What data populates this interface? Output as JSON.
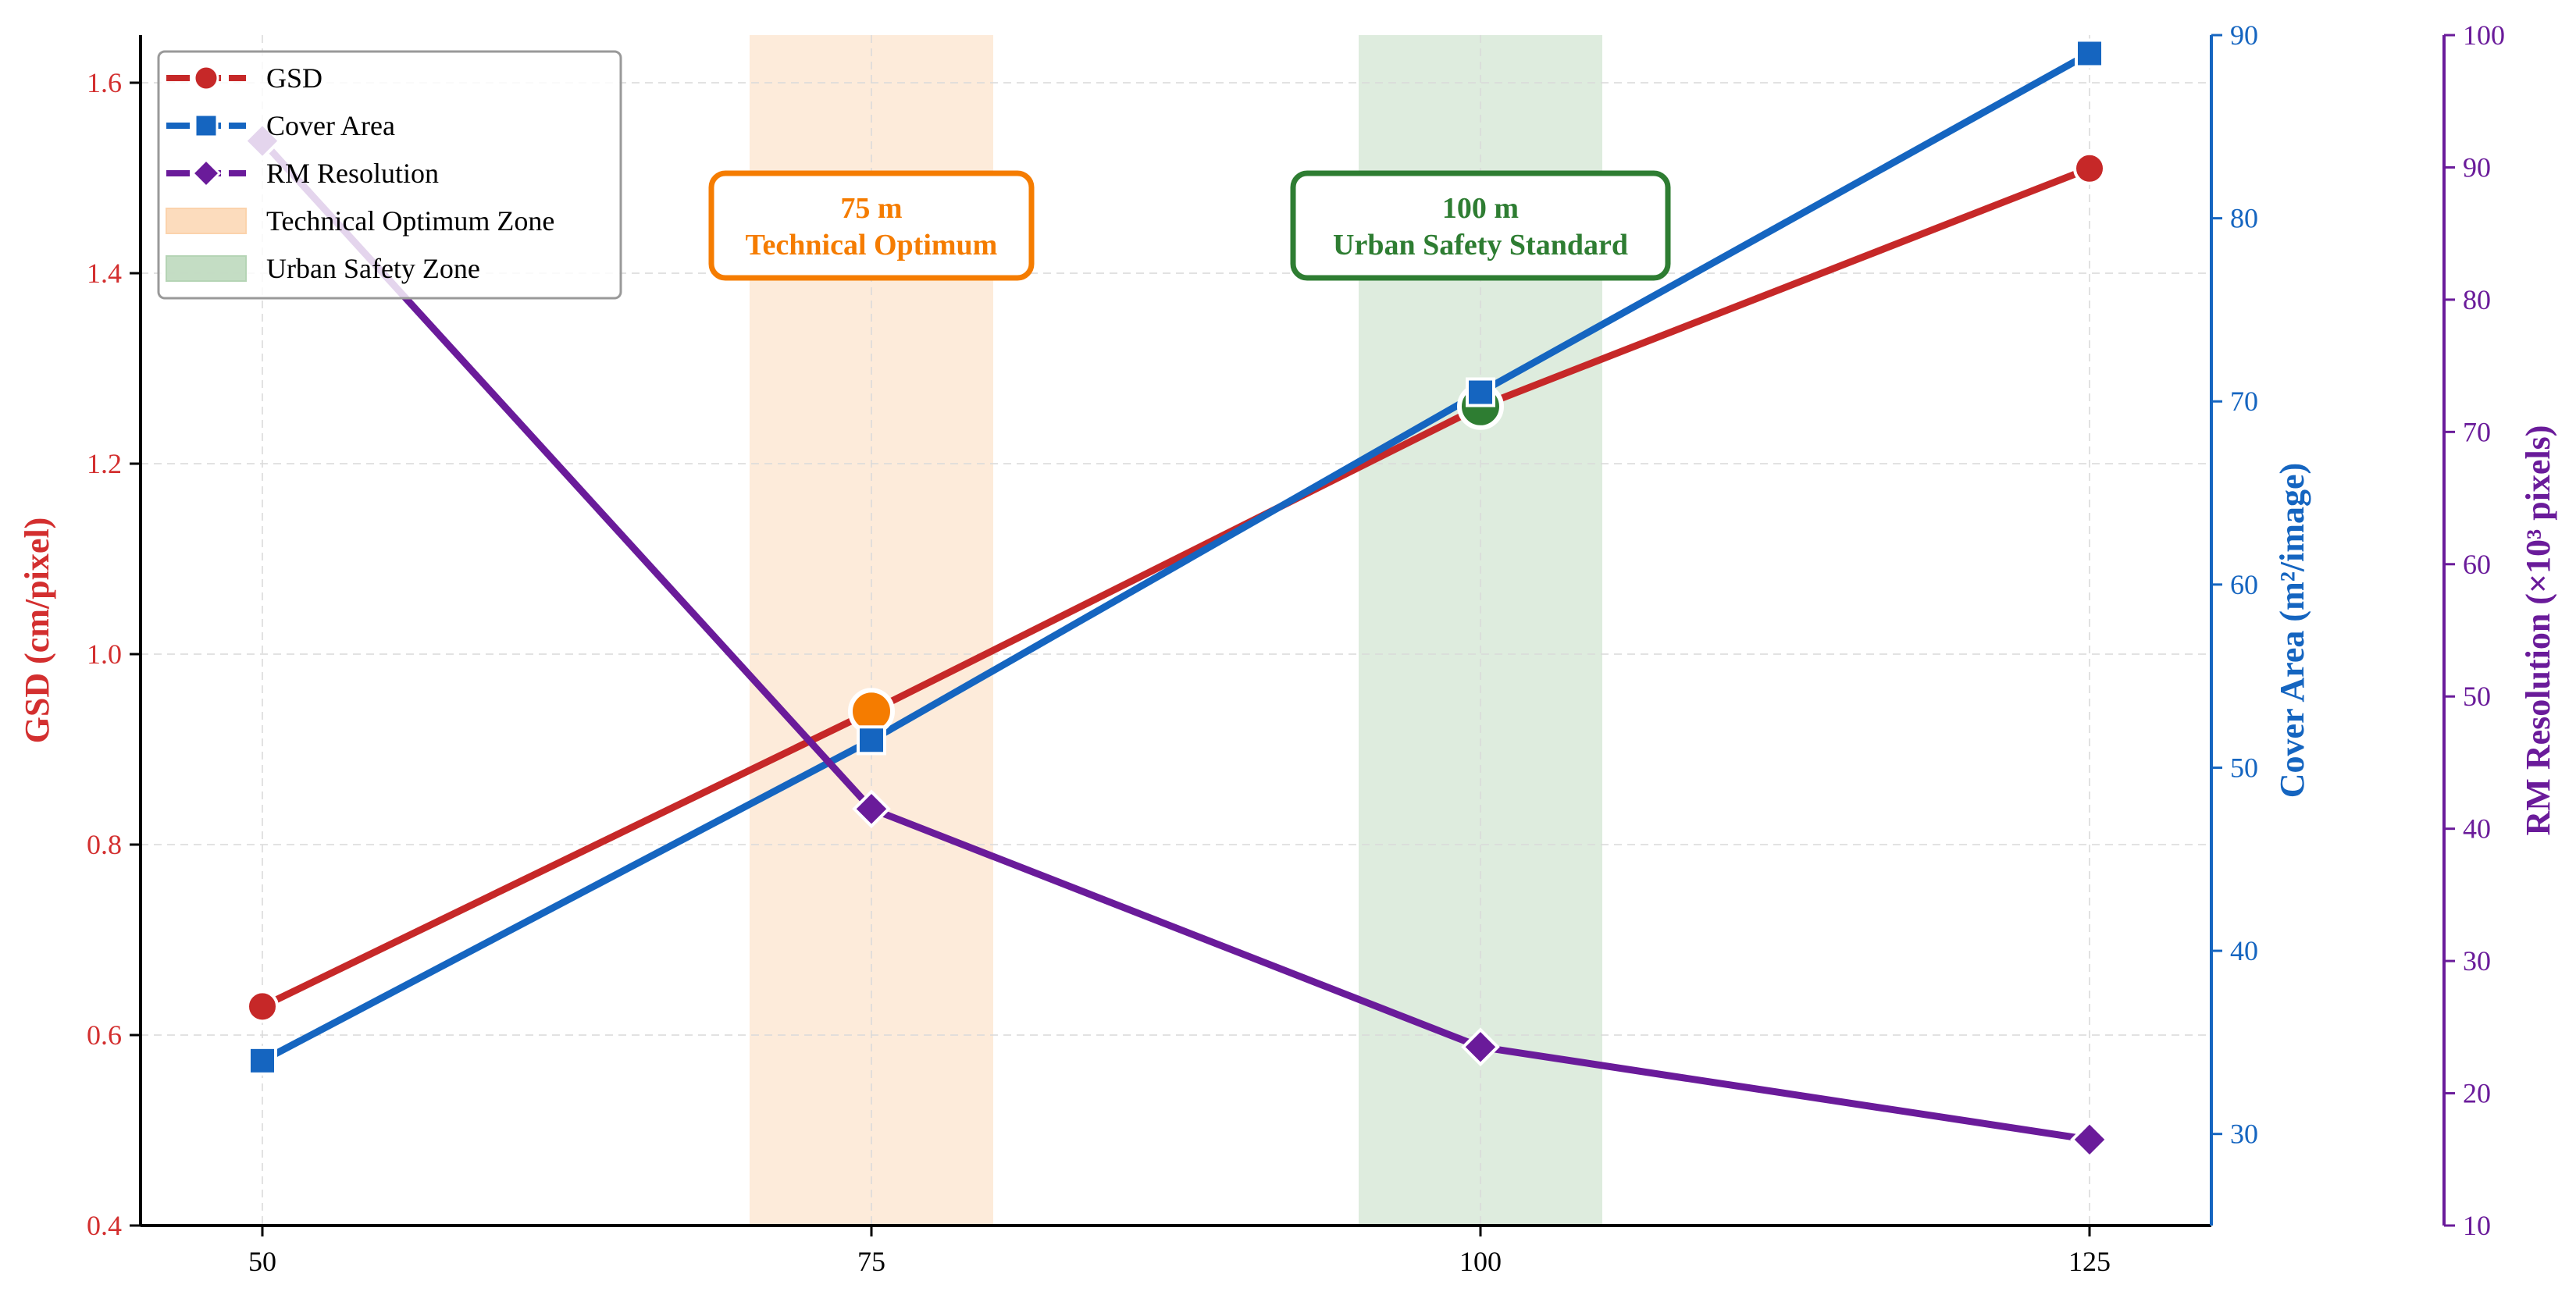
{
  "chart_data": {
    "type": "line",
    "x": [
      50,
      75,
      100,
      125
    ],
    "xticks": [
      "50",
      "75",
      "100",
      "125"
    ],
    "xlim": [
      45,
      130
    ],
    "axes": {
      "left": {
        "label": "GSD (cm/pixel)",
        "ylim": [
          0.4,
          1.65
        ],
        "ticks": [
          "0.4",
          "0.6",
          "0.8",
          "1.0",
          "1.2",
          "1.4",
          "1.6"
        ],
        "color": "#d32f2f"
      },
      "right1": {
        "label": "Cover Area (m²/image)",
        "ylim": [
          25,
          90
        ],
        "ticks": [
          "30",
          "40",
          "50",
          "60",
          "70",
          "80",
          "90"
        ],
        "color": "#1565c0"
      },
      "right2": {
        "label": "RM Resolution (×10³ pixels)",
        "ylim": [
          10,
          100
        ],
        "ticks": [
          "10",
          "20",
          "30",
          "40",
          "50",
          "60",
          "70",
          "80",
          "90",
          "100"
        ],
        "color": "#6a1b9a"
      }
    },
    "series": [
      {
        "name": "GSD",
        "axis": "left",
        "values": [
          0.63,
          0.94,
          1.26,
          1.51
        ],
        "color": "#c62828",
        "marker": "circle"
      },
      {
        "name": "Cover Area",
        "axis": "right1",
        "values": [
          34,
          51.5,
          70.5,
          89
        ],
        "color": "#1565c0",
        "marker": "square"
      },
      {
        "name": "RM Resolution",
        "axis": "right2",
        "values": [
          92,
          41.5,
          23.5,
          16.5
        ],
        "color": "#6a1b9a",
        "marker": "diamond"
      }
    ],
    "zones": [
      {
        "name": "Technical Optimum Zone",
        "x_range": [
          70,
          80
        ],
        "color": "#fbd3ac"
      },
      {
        "name": "Urban Safety Zone",
        "x_range": [
          95,
          105
        ],
        "color": "#b5d4b5"
      }
    ],
    "annotations": [
      {
        "line1": "75 m",
        "line2": "Technical Optimum",
        "x": 75,
        "y": 1.45,
        "color": "#f57c00"
      },
      {
        "line1": "100 m",
        "line2": "Urban Safety Standard",
        "x": 100,
        "y": 1.45,
        "color": "#2e7d32"
      }
    ],
    "highlight_points": [
      {
        "x": 75,
        "y": 0.94,
        "color": "#f57c00"
      },
      {
        "x": 100,
        "y": 1.26,
        "color": "#2e7d32"
      }
    ],
    "grid": true,
    "legend_position": "top-left"
  }
}
